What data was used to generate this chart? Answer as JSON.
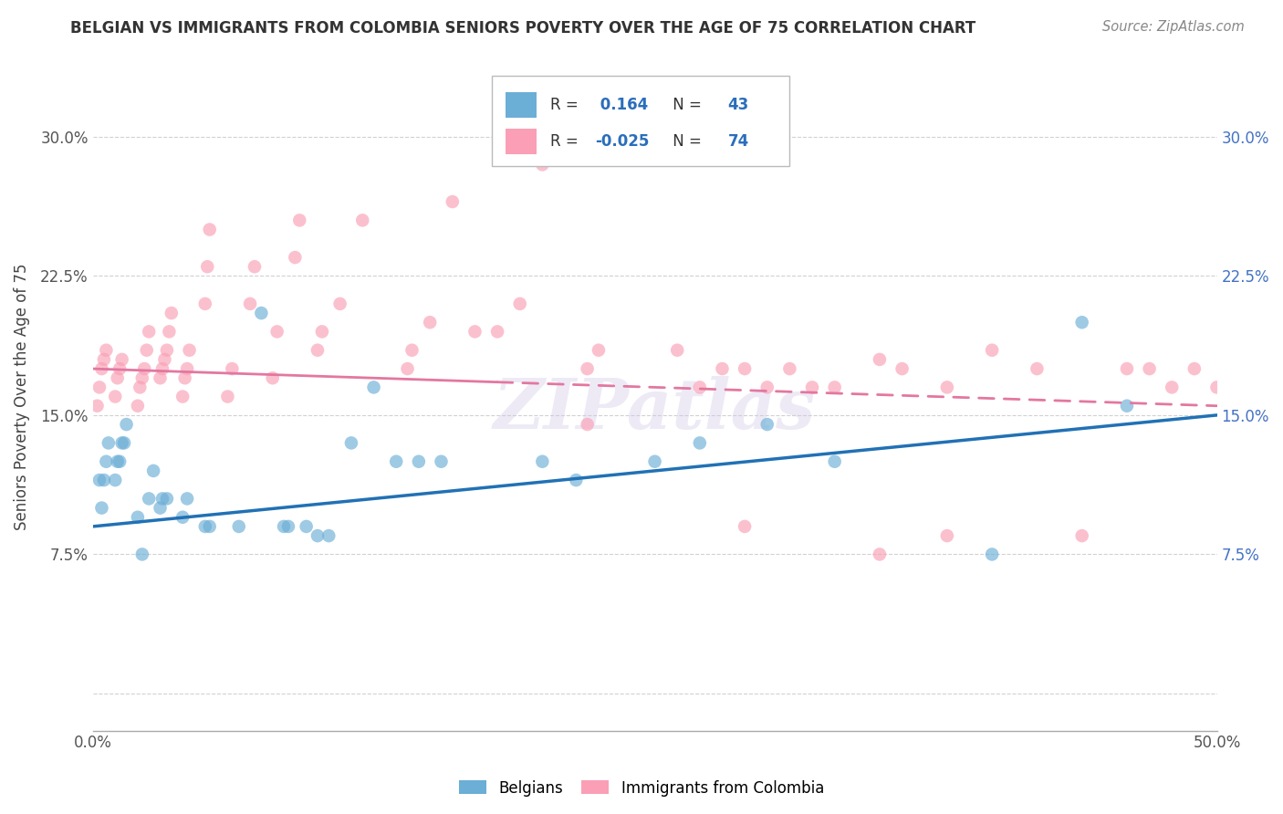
{
  "title": "BELGIAN VS IMMIGRANTS FROM COLOMBIA SENIORS POVERTY OVER THE AGE OF 75 CORRELATION CHART",
  "source": "Source: ZipAtlas.com",
  "ylabel": "Seniors Poverty Over the Age of 75",
  "xlabel": "",
  "xlim": [
    0.0,
    0.5
  ],
  "ylim": [
    -0.02,
    0.34
  ],
  "yticks": [
    0.0,
    0.075,
    0.15,
    0.225,
    0.3
  ],
  "ytick_labels": [
    "",
    "7.5%",
    "15.0%",
    "22.5%",
    "30.0%"
  ],
  "xticks": [
    0.0,
    0.1,
    0.2,
    0.3,
    0.4,
    0.5
  ],
  "xtick_labels": [
    "0.0%",
    "",
    "",
    "",
    "",
    "50.0%"
  ],
  "belgians_R": 0.164,
  "belgians_N": 43,
  "colombia_R": -0.025,
  "colombia_N": 74,
  "blue_color": "#6baed6",
  "pink_color": "#fa9fb5",
  "blue_line_color": "#2171b5",
  "pink_line_color": "#e377a0",
  "watermark": "ZIPatlas",
  "belgians_x": [
    0.003,
    0.004,
    0.005,
    0.006,
    0.007,
    0.01,
    0.011,
    0.012,
    0.013,
    0.014,
    0.015,
    0.02,
    0.022,
    0.025,
    0.027,
    0.03,
    0.031,
    0.033,
    0.04,
    0.042,
    0.05,
    0.052,
    0.065,
    0.075,
    0.085,
    0.087,
    0.095,
    0.1,
    0.105,
    0.115,
    0.125,
    0.135,
    0.145,
    0.155,
    0.2,
    0.215,
    0.25,
    0.27,
    0.3,
    0.33,
    0.4,
    0.44,
    0.46
  ],
  "belgians_y": [
    0.115,
    0.1,
    0.115,
    0.125,
    0.135,
    0.115,
    0.125,
    0.125,
    0.135,
    0.135,
    0.145,
    0.095,
    0.075,
    0.105,
    0.12,
    0.1,
    0.105,
    0.105,
    0.095,
    0.105,
    0.09,
    0.09,
    0.09,
    0.205,
    0.09,
    0.09,
    0.09,
    0.085,
    0.085,
    0.135,
    0.165,
    0.125,
    0.125,
    0.125,
    0.125,
    0.115,
    0.125,
    0.135,
    0.145,
    0.125,
    0.075,
    0.2,
    0.155
  ],
  "colombia_x": [
    0.002,
    0.003,
    0.004,
    0.005,
    0.006,
    0.01,
    0.011,
    0.012,
    0.013,
    0.02,
    0.021,
    0.022,
    0.023,
    0.024,
    0.025,
    0.03,
    0.031,
    0.032,
    0.033,
    0.034,
    0.035,
    0.04,
    0.041,
    0.042,
    0.043,
    0.05,
    0.051,
    0.052,
    0.06,
    0.062,
    0.07,
    0.072,
    0.08,
    0.082,
    0.09,
    0.092,
    0.1,
    0.102,
    0.11,
    0.12,
    0.14,
    0.142,
    0.15,
    0.16,
    0.17,
    0.18,
    0.19,
    0.2,
    0.22,
    0.225,
    0.25,
    0.26,
    0.27,
    0.28,
    0.29,
    0.3,
    0.31,
    0.32,
    0.33,
    0.35,
    0.36,
    0.38,
    0.4,
    0.42,
    0.44,
    0.46,
    0.47,
    0.48,
    0.49,
    0.5,
    0.22,
    0.38,
    0.29,
    0.35
  ],
  "colombia_y": [
    0.155,
    0.165,
    0.175,
    0.18,
    0.185,
    0.16,
    0.17,
    0.175,
    0.18,
    0.155,
    0.165,
    0.17,
    0.175,
    0.185,
    0.195,
    0.17,
    0.175,
    0.18,
    0.185,
    0.195,
    0.205,
    0.16,
    0.17,
    0.175,
    0.185,
    0.21,
    0.23,
    0.25,
    0.16,
    0.175,
    0.21,
    0.23,
    0.17,
    0.195,
    0.235,
    0.255,
    0.185,
    0.195,
    0.21,
    0.255,
    0.175,
    0.185,
    0.2,
    0.265,
    0.195,
    0.195,
    0.21,
    0.285,
    0.175,
    0.185,
    0.3,
    0.185,
    0.165,
    0.175,
    0.175,
    0.165,
    0.175,
    0.165,
    0.165,
    0.18,
    0.175,
    0.165,
    0.185,
    0.175,
    0.085,
    0.175,
    0.175,
    0.165,
    0.175,
    0.165,
    0.145,
    0.085,
    0.09,
    0.075
  ],
  "blue_trendline_start_y": 0.09,
  "blue_trendline_end_y": 0.15,
  "pink_trendline_start_y": 0.175,
  "pink_trendline_end_y": 0.155
}
